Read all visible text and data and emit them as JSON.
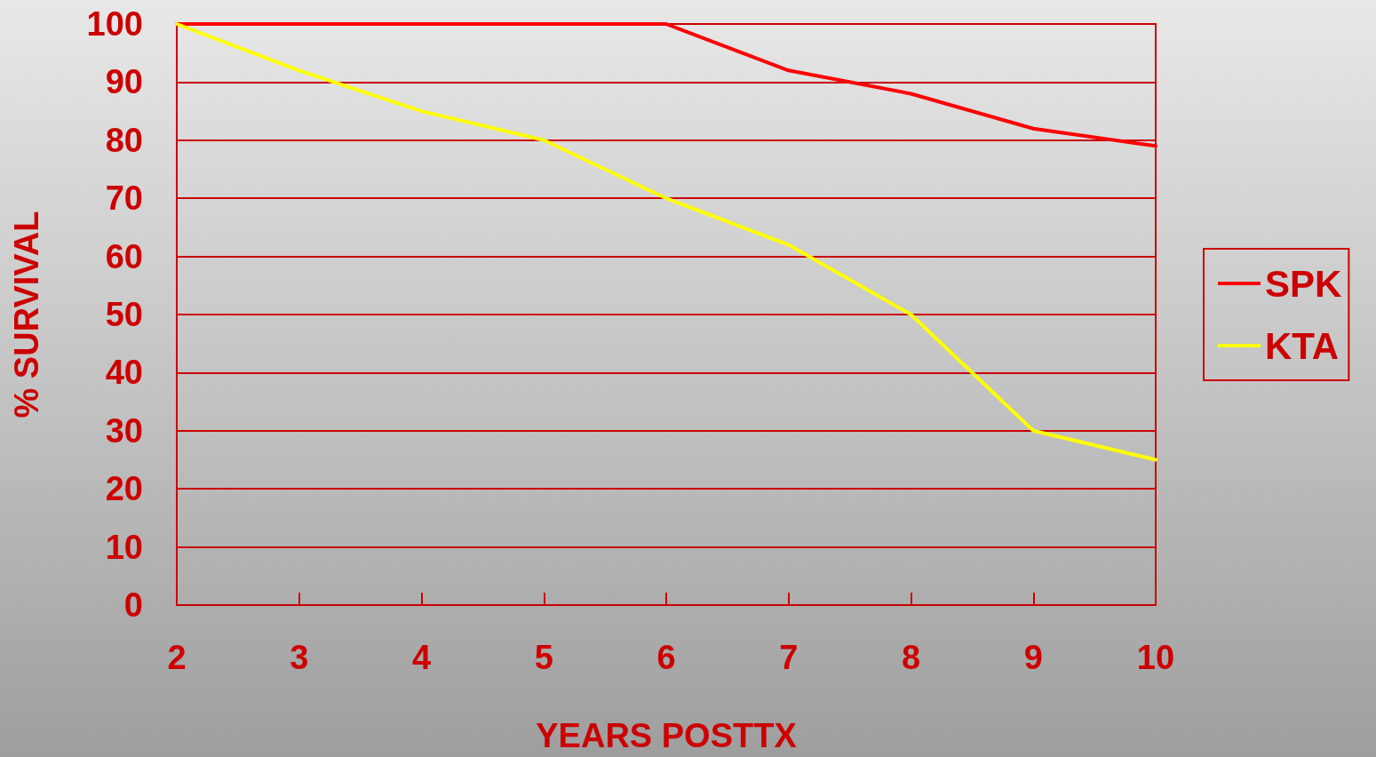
{
  "chart_data": {
    "type": "line",
    "xlabel": "YEARS POSTTX",
    "ylabel": "% SURVIVAL",
    "x": [
      2,
      3,
      4,
      5,
      6,
      7,
      8,
      9,
      10
    ],
    "series": [
      {
        "name": "SPK",
        "color": "#ff0000",
        "values": [
          100,
          100,
          100,
          100,
          100,
          92,
          88,
          82,
          79
        ]
      },
      {
        "name": "KTA",
        "color": "#ffff00",
        "values": [
          100,
          92,
          85,
          80,
          70,
          62,
          50,
          30,
          25
        ]
      }
    ],
    "xlim": [
      2,
      10
    ],
    "xticks": [
      2,
      3,
      4,
      5,
      6,
      7,
      8,
      9,
      10
    ],
    "ylim": [
      0,
      100
    ],
    "yticks": [
      0,
      10,
      20,
      30,
      40,
      50,
      60,
      70,
      80,
      90,
      100
    ],
    "grid": "y",
    "legend": "right",
    "marker": "none"
  }
}
